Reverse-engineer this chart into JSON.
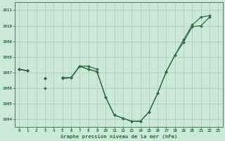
{
  "title": "Graphe pression niveau de la mer (hPa)",
  "bg_color": "#cce8d8",
  "plot_bg_color": "#cce8d8",
  "line_color": "#2d6e3e",
  "grid_color": "#aacabb",
  "ylim": [
    1003.5,
    1011.5
  ],
  "yticks": [
    1004,
    1005,
    1006,
    1007,
    1008,
    1009,
    1010,
    1011
  ],
  "xlim": [
    -0.5,
    23.5
  ],
  "xticks": [
    0,
    1,
    2,
    3,
    4,
    5,
    6,
    7,
    8,
    9,
    10,
    11,
    12,
    13,
    14,
    15,
    16,
    17,
    18,
    19,
    20,
    21,
    22,
    23
  ],
  "series": [
    [
      1007.2,
      1007.1,
      null,
      1006.6,
      null,
      1006.65,
      1006.65,
      1007.4,
      1007.4,
      1007.2,
      null,
      null,
      null,
      null,
      null,
      null,
      null,
      null,
      null,
      null,
      null,
      null,
      null,
      null
    ],
    [
      1007.2,
      1007.1,
      null,
      1006.0,
      null,
      1006.6,
      1006.65,
      null,
      null,
      null,
      null,
      null,
      null,
      null,
      null,
      null,
      null,
      null,
      null,
      null,
      null,
      null,
      null,
      null
    ],
    [
      1007.2,
      1007.1,
      null,
      1006.6,
      null,
      1006.65,
      1006.65,
      1007.4,
      1007.2,
      1007.05,
      1005.4,
      1004.25,
      1004.05,
      1003.85,
      1003.85,
      1004.45,
      1005.65,
      1007.05,
      1008.1,
      1008.95,
      1009.95,
      1010.0,
      1010.55,
      null
    ],
    [
      1007.2,
      1007.1,
      null,
      1006.6,
      null,
      1006.65,
      1006.65,
      1007.4,
      1007.2,
      1007.05,
      1005.4,
      1004.25,
      1004.05,
      1003.85,
      1003.85,
      1004.45,
      1005.65,
      1007.05,
      1008.1,
      1009.1,
      1010.05,
      1010.55,
      1010.65,
      null
    ]
  ],
  "marker": "D",
  "markersize": 2.0,
  "linewidth": 0.9
}
